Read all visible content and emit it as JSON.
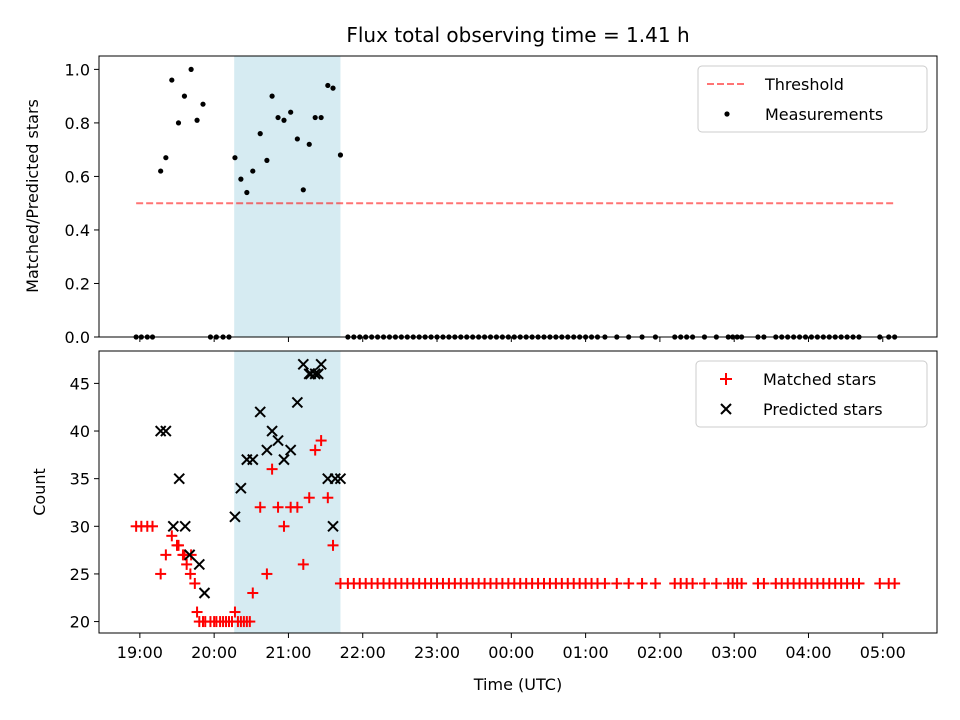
{
  "chart_data": {
    "title": "Flux total observing time = 1.41 h",
    "xlabel": "Time (UTC)",
    "x_unit": "hours since 19:00 UTC",
    "xlim": [
      -0.55,
      10.73
    ],
    "x_ticks": [
      0,
      1,
      2,
      3,
      4,
      5,
      6,
      7,
      8,
      9,
      10
    ],
    "x_tick_labels": [
      "19:00",
      "20:00",
      "21:00",
      "22:00",
      "23:00",
      "00:00",
      "01:00",
      "02:00",
      "03:00",
      "04:00",
      "05:00"
    ],
    "highlight_span": [
      1.27,
      2.7
    ],
    "highlight_color": "#add8e6",
    "top_panel": {
      "type": "scatter",
      "ylabel": "Matched/Predicted stars",
      "ylim": [
        0,
        1.05
      ],
      "y_ticks": [
        0.0,
        0.2,
        0.4,
        0.6,
        0.8,
        1.0
      ],
      "y_tick_labels": [
        "0.0",
        "0.2",
        "0.4",
        "0.6",
        "0.8",
        "1.0"
      ],
      "threshold": {
        "name": "Threshold",
        "value": 0.5,
        "x_range": [
          -0.05,
          10.15
        ],
        "color": "#ff0000"
      },
      "legend": [
        "Threshold",
        "Measurements"
      ],
      "series": [
        {
          "name": "Measurements",
          "color": "#000000",
          "x": [
            -0.05,
            0.02,
            0.1,
            0.17,
            0.28,
            0.35,
            0.43,
            0.52,
            0.6,
            0.69,
            0.77,
            0.85,
            0.95,
            1.03,
            1.12,
            1.2,
            1.28,
            1.36,
            1.44,
            1.52,
            1.62,
            1.71,
            1.78,
            1.86,
            1.94,
            2.03,
            2.12,
            2.2,
            2.28,
            2.36,
            2.44,
            2.53,
            2.6,
            2.7,
            2.8,
            2.88,
            2.96,
            3.04,
            3.12,
            3.2,
            3.28,
            3.36,
            3.44,
            3.52,
            3.6,
            3.68,
            3.76,
            3.84,
            3.92,
            4.0,
            4.08,
            4.16,
            4.24,
            4.32,
            4.4,
            4.48,
            4.56,
            4.64,
            4.72,
            4.8,
            4.88,
            4.96,
            5.04,
            5.12,
            5.2,
            5.28,
            5.36,
            5.44,
            5.52,
            5.6,
            5.68,
            5.76,
            5.84,
            5.92,
            6.0,
            6.08,
            6.16,
            6.26,
            6.42,
            6.58,
            6.76,
            6.94,
            7.2,
            7.28,
            7.36,
            7.44,
            7.6,
            7.76,
            7.92,
            7.98,
            8.04,
            8.1,
            8.32,
            8.4,
            8.56,
            8.64,
            8.72,
            8.8,
            8.88,
            8.96,
            9.04,
            9.12,
            9.2,
            9.28,
            9.36,
            9.44,
            9.52,
            9.6,
            9.68,
            9.96,
            10.08,
            10.16
          ],
          "y": [
            0,
            0,
            0,
            0,
            0.62,
            0.67,
            0.96,
            0.8,
            0.9,
            1.0,
            0.81,
            0.87,
            0,
            0,
            0,
            0,
            0.67,
            0.59,
            0.54,
            0.62,
            0.76,
            0.66,
            0.9,
            0.82,
            0.81,
            0.84,
            0.74,
            0.55,
            0.72,
            0.82,
            0.82,
            0.94,
            0.93,
            0.68,
            0,
            0,
            0,
            0,
            0,
            0,
            0,
            0,
            0,
            0,
            0,
            0,
            0,
            0,
            0,
            0,
            0,
            0,
            0,
            0,
            0,
            0,
            0,
            0,
            0,
            0,
            0,
            0,
            0,
            0,
            0,
            0,
            0,
            0,
            0,
            0,
            0,
            0,
            0,
            0,
            0,
            0,
            0,
            0,
            0,
            0,
            0,
            0,
            0,
            0,
            0,
            0,
            0,
            0,
            0,
            0,
            0,
            0,
            0,
            0,
            0,
            0,
            0,
            0,
            0,
            0,
            0,
            0,
            0,
            0,
            0,
            0,
            0,
            0,
            0,
            0,
            0,
            0
          ]
        }
      ]
    },
    "bottom_panel": {
      "type": "scatter",
      "ylabel": "Count",
      "ylim": [
        18.8,
        48.4
      ],
      "y_ticks": [
        20,
        25,
        30,
        35,
        40,
        45
      ],
      "y_tick_labels": [
        "20",
        "25",
        "30",
        "35",
        "40",
        "45"
      ],
      "legend": [
        "Matched stars",
        "Predicted stars"
      ],
      "series": [
        {
          "name": "Matched stars",
          "marker": "plus",
          "color": "#ff0000",
          "x": [
            -0.05,
            0.02,
            0.1,
            0.17,
            0.28,
            0.35,
            0.43,
            0.52,
            0.6,
            0.69,
            0.77,
            0.85,
            0.95,
            1.03,
            1.12,
            1.2,
            1.28,
            1.36,
            1.44,
            1.52,
            1.62,
            1.71,
            1.78,
            1.86,
            1.94,
            2.03,
            2.12,
            2.2,
            2.28,
            2.36,
            2.44,
            2.53,
            2.6,
            2.7,
            2.8,
            2.88,
            2.96,
            3.04,
            3.12,
            3.2,
            3.28,
            3.36,
            3.44,
            3.52,
            3.6,
            3.68,
            3.76,
            3.84,
            3.92,
            4.0,
            4.08,
            4.16,
            4.24,
            4.32,
            4.4,
            4.48,
            4.56,
            4.64,
            4.72,
            4.8,
            4.88,
            4.96,
            5.04,
            5.12,
            5.2,
            5.28,
            5.36,
            5.44,
            5.52,
            5.6,
            5.68,
            5.76,
            5.84,
            5.92,
            6.0,
            6.08,
            6.16,
            6.26,
            6.42,
            6.58,
            6.76,
            6.94,
            7.2,
            7.28,
            7.36,
            7.44,
            7.6,
            7.76,
            7.92,
            7.98,
            8.04,
            8.1,
            8.32,
            8.4,
            8.56,
            8.64,
            8.72,
            8.8,
            8.88,
            8.96,
            9.04,
            9.12,
            9.2,
            9.28,
            9.36,
            9.44,
            9.52,
            9.6,
            9.68,
            9.96,
            10.08,
            10.16,
            0.5,
            0.58,
            0.63,
            0.68,
            0.74,
            0.8,
            0.88,
            1.0,
            1.08,
            1.16,
            1.24,
            1.32,
            1.4,
            1.48
          ],
          "y": [
            30,
            30,
            30,
            30,
            25,
            27,
            29,
            28,
            27,
            27,
            21,
            20,
            20,
            20,
            20,
            20,
            21,
            20,
            20,
            23,
            32,
            25,
            36,
            32,
            30,
            32,
            32,
            26,
            33,
            38,
            39,
            33,
            28,
            24,
            24,
            24,
            24,
            24,
            24,
            24,
            24,
            24,
            24,
            24,
            24,
            24,
            24,
            24,
            24,
            24,
            24,
            24,
            24,
            24,
            24,
            24,
            24,
            24,
            24,
            24,
            24,
            24,
            24,
            24,
            24,
            24,
            24,
            24,
            24,
            24,
            24,
            24,
            24,
            24,
            24,
            24,
            24,
            24,
            24,
            24,
            24,
            24,
            24,
            24,
            24,
            24,
            24,
            24,
            24,
            24,
            24,
            24,
            24,
            24,
            24,
            24,
            24,
            24,
            24,
            24,
            24,
            24,
            24,
            24,
            24,
            24,
            24,
            24,
            24,
            24,
            24,
            24,
            28,
            27,
            26,
            25,
            24,
            20,
            20,
            20,
            20,
            20,
            20,
            20,
            20,
            20
          ]
        },
        {
          "name": "Predicted stars",
          "marker": "x",
          "color": "#000000",
          "x": [
            0.28,
            0.35,
            0.45,
            0.53,
            0.61,
            0.67,
            0.8,
            0.87,
            1.28,
            1.36,
            1.44,
            1.52,
            1.62,
            1.71,
            1.78,
            1.86,
            1.94,
            2.03,
            2.12,
            2.2,
            2.28,
            2.36,
            2.44,
            2.53,
            2.6,
            2.7,
            2.63,
            2.3,
            2.4
          ],
          "y": [
            40,
            40,
            30,
            35,
            30,
            27,
            26,
            23,
            31,
            34,
            37,
            37,
            42,
            38,
            40,
            39,
            37,
            38,
            43,
            47,
            46,
            46,
            47,
            35,
            30,
            35,
            35,
            46,
            46
          ]
        }
      ]
    }
  }
}
